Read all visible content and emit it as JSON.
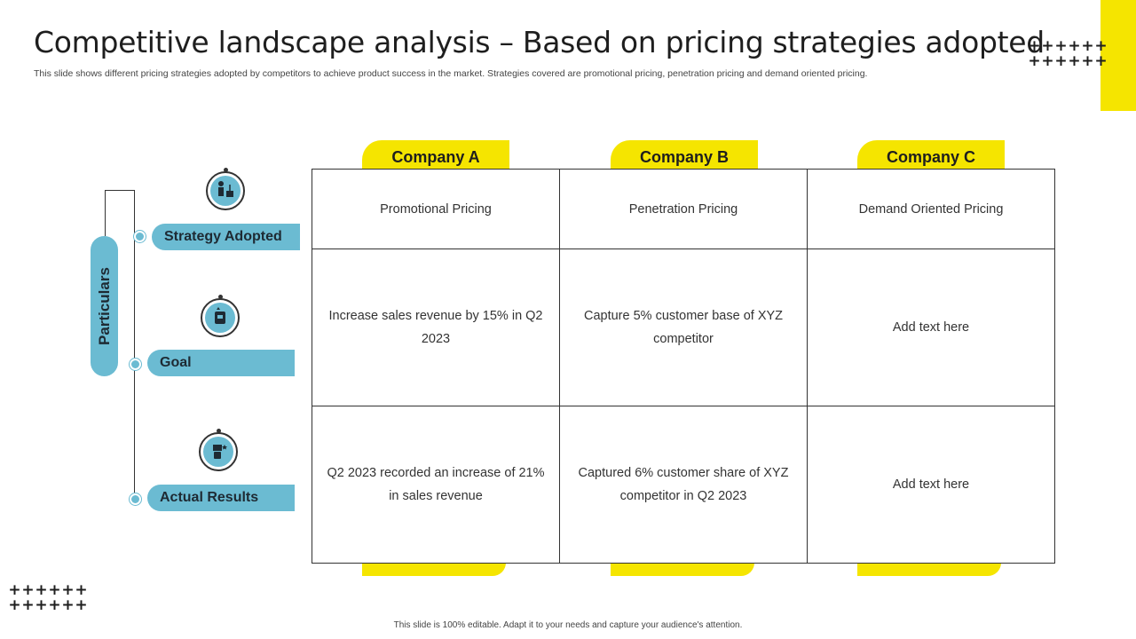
{
  "title": "Competitive landscape analysis – Based on pricing strategies adopted",
  "subtitle": "This slide shows different pricing strategies adopted by competitors to achieve product success in the market. Strategies covered are promotional pricing, penetration pricing and demand oriented pricing.",
  "particulars_label": "Particulars",
  "rows": [
    {
      "label": "Strategy Adopted",
      "icon": "strategy-icon"
    },
    {
      "label": "Goal",
      "icon": "goal-icon"
    },
    {
      "label": "Actual Results",
      "icon": "results-icon"
    }
  ],
  "companies": [
    "Company A",
    "Company B",
    "Company C"
  ],
  "cells": [
    [
      "Promotional Pricing",
      "Penetration Pricing",
      "Demand Oriented Pricing"
    ],
    [
      "Increase sales revenue by 15% in Q2 2023",
      "Capture 5% customer base of XYZ  competitor",
      "Add text here"
    ],
    [
      "Q2 2023 recorded an increase of 21% in sales revenue",
      "Captured 6% customer share of XYZ competitor in Q2 2023",
      "Add text here"
    ]
  ],
  "footer": "This slide is 100% editable.  Adapt it to your needs and capture your audience's attention.",
  "colors": {
    "accent_yellow": "#f5e500",
    "accent_blue": "#6bbbd2",
    "text_dark": "#1e2a33"
  }
}
